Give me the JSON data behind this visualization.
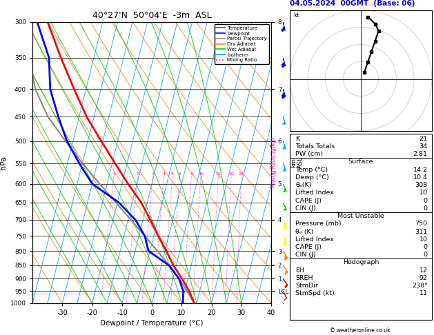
{
  "title_left": "40°27'N  50°04'E  -3m  ASL",
  "title_right": "04.05.2024  00GMT  (Base: 06)",
  "xlabel": "Dewpoint / Temperature (°C)",
  "ylabel_left": "hPa",
  "bg_color": "#ffffff",
  "plot_bg": "#ffffff",
  "pmin": 300,
  "pmax": 1000,
  "temp_min": -40,
  "temp_max": 40,
  "skew": 45,
  "isotherm_temps": [
    -40,
    -35,
    -30,
    -25,
    -20,
    -15,
    -10,
    -5,
    0,
    5,
    10,
    15,
    20,
    25,
    30,
    35,
    40
  ],
  "isotherm_color": "#00aaff",
  "dry_adiabat_thetas": [
    -30,
    -20,
    -10,
    0,
    10,
    20,
    30,
    40,
    50,
    60,
    70,
    80,
    90,
    100,
    110,
    120
  ],
  "dry_adiabat_color": "#ff8800",
  "wet_adiabat_starts": [
    -20,
    -15,
    -10,
    -5,
    0,
    5,
    10,
    15,
    20,
    25,
    30
  ],
  "wet_adiabat_color": "#00cc00",
  "mixing_ratio_vals": [
    1,
    2,
    3,
    4,
    5,
    6,
    8,
    10,
    15,
    20,
    25
  ],
  "mixing_ratio_color": "#ff00bb",
  "temp_color": "#ff0000",
  "dewpoint_color": "#0000ff",
  "parcel_color": "#888888",
  "temp_profile_p": [
    1000,
    950,
    900,
    850,
    800,
    750,
    700,
    650,
    600,
    550,
    500,
    450,
    400,
    350,
    300
  ],
  "temp_profile_T": [
    14.2,
    11.5,
    8.0,
    4.0,
    0.5,
    -3.5,
    -7.5,
    -12.0,
    -18.0,
    -24.0,
    -30.5,
    -37.5,
    -44.0,
    -51.0,
    -58.5
  ],
  "dewp_profile_p": [
    1000,
    950,
    900,
    850,
    800,
    750,
    700,
    650,
    600,
    550,
    500,
    450,
    400,
    350,
    300
  ],
  "dewp_profile_T": [
    10.4,
    9.5,
    7.0,
    2.5,
    -5.5,
    -8.0,
    -12.5,
    -19.5,
    -30.0,
    -36.0,
    -42.0,
    -47.0,
    -52.0,
    -55.0,
    -62.0
  ],
  "parcel_profile_p": [
    1000,
    950,
    900,
    850,
    800,
    750,
    700,
    650,
    600,
    550,
    500,
    450,
    400,
    350,
    300
  ],
  "parcel_profile_T": [
    14.2,
    10.8,
    7.0,
    2.5,
    -2.5,
    -8.0,
    -14.0,
    -20.5,
    -27.5,
    -35.0,
    -42.5,
    -50.5,
    -57.0,
    -61.5,
    -65.0
  ],
  "lcl_pressure": 960,
  "legend_items": [
    {
      "label": "Temperature",
      "color": "#ff0000",
      "ls": "-"
    },
    {
      "label": "Dewpoint",
      "color": "#0000ff",
      "ls": "-"
    },
    {
      "label": "Parcel Trajectory",
      "color": "#888888",
      "ls": "-"
    },
    {
      "label": "Dry Adiabat",
      "color": "#ff8800",
      "ls": "-"
    },
    {
      "label": "Wet Adiabat",
      "color": "#00cc00",
      "ls": "-"
    },
    {
      "label": "Isotherm",
      "color": "#00aaff",
      "ls": "-"
    },
    {
      "label": "Mixing Ratio",
      "color": "#ff00bb",
      "ls": ":"
    }
  ],
  "p_ticks": [
    300,
    350,
    400,
    450,
    500,
    550,
    600,
    650,
    700,
    750,
    800,
    850,
    900,
    950,
    1000
  ],
  "x_ticks": [
    -30,
    -20,
    -10,
    0,
    10,
    20,
    30,
    40
  ],
  "km_p": [
    300,
    400,
    500,
    600,
    700,
    800,
    850,
    900,
    950
  ],
  "km_label": [
    "8",
    "7",
    "6",
    "5",
    "4",
    "3",
    "2",
    "1",
    "LCL"
  ],
  "wind_p": [
    300,
    350,
    400,
    450,
    500,
    550,
    600,
    650,
    700,
    750,
    800,
    850,
    900,
    950,
    1000
  ],
  "wind_u": [
    -8,
    -10,
    -12,
    -15,
    -18,
    -20,
    -22,
    -22,
    -22,
    -20,
    -18,
    -15,
    -10,
    -5,
    -3
  ],
  "wind_v": [
    35,
    40,
    45,
    48,
    50,
    50,
    48,
    45,
    40,
    35,
    28,
    22,
    15,
    10,
    5
  ],
  "barb_colors": [
    "#0000ff",
    "#0000ff",
    "#0000ff",
    "#00aaff",
    "#00aaff",
    "#00aaff",
    "#00cc00",
    "#00cc00",
    "#ffff00",
    "#ffff00",
    "#ff8800",
    "#ff8800",
    "#ff0000",
    "#ff0000",
    "#ff0000"
  ],
  "hodo_u": [
    1,
    2,
    3,
    4,
    5,
    4,
    2
  ],
  "hodo_v": [
    2,
    5,
    8,
    11,
    14,
    16,
    18
  ],
  "info_K": "21",
  "info_TT": "34",
  "info_PW": "2.81",
  "info_surf_temp": "14.2",
  "info_surf_dewp": "10.4",
  "info_surf_thetae": "308",
  "info_surf_LI": "10",
  "info_surf_CAPE": "0",
  "info_surf_CIN": "0",
  "info_mu_pres": "750",
  "info_mu_thetae": "311",
  "info_mu_LI": "10",
  "info_mu_CAPE": "0",
  "info_mu_CIN": "0",
  "info_hodo_EH": "12",
  "info_hodo_SREH": "92",
  "info_hodo_StmDir": "238°",
  "info_hodo_StmSpd": "11",
  "copyright": "© weatheronline.co.uk"
}
